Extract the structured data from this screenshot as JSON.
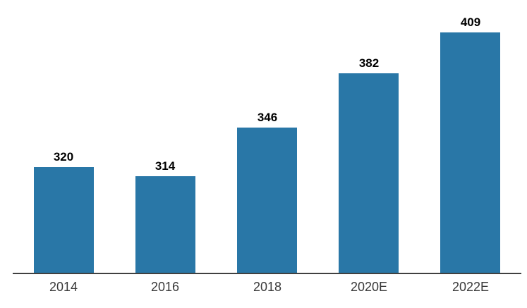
{
  "chart_data": {
    "type": "bar",
    "categories": [
      "2014",
      "2016",
      "2018",
      "2020E",
      "2022E"
    ],
    "values": [
      320,
      314,
      346,
      382,
      409
    ],
    "title": "",
    "xlabel": "",
    "ylabel": "",
    "ylim": [
      250,
      420
    ],
    "grid": false,
    "legend": false,
    "data_labels_shown": true,
    "bar_color": "#2977A7",
    "axis_line_color": "#404040",
    "value_label_color": "#000000",
    "tick_label_color": "#3a3a3a"
  }
}
